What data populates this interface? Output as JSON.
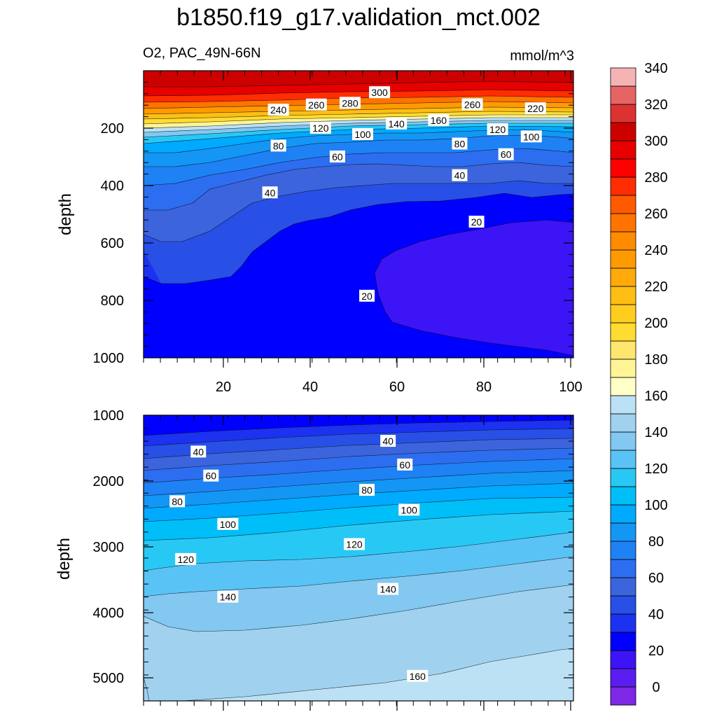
{
  "chart_data": {
    "type": "contour",
    "title": "b1850.f19_g17.validation_mct.002",
    "variable_label": "O2, PAC_49N-66N",
    "units_label": "mmol/m^3",
    "colorbar": {
      "levels": [
        0,
        10,
        20,
        30,
        40,
        50,
        60,
        70,
        80,
        90,
        100,
        110,
        120,
        130,
        140,
        150,
        160,
        170,
        180,
        190,
        200,
        210,
        220,
        230,
        240,
        250,
        260,
        270,
        280,
        290,
        300,
        310,
        320,
        330,
        340,
        350
      ],
      "colors": [
        "#7c28e6",
        "#5a1ef0",
        "#3c14f5",
        "#0000ff",
        "#1c32f0",
        "#2850e6",
        "#3c64dc",
        "#2d6ef0",
        "#1e82f5",
        "#1496f5",
        "#00aaff",
        "#00bef8",
        "#28c8f5",
        "#5ac3f5",
        "#82c8f0",
        "#a0d2f0",
        "#bce1f5",
        "#ffffc8",
        "#fff596",
        "#ffe66e",
        "#ffdc32",
        "#ffcd1e",
        "#ffbe14",
        "#ffaa0a",
        "#ff9b00",
        "#ff8c00",
        "#ff7300",
        "#ff5a00",
        "#ff2d00",
        "#ff0000",
        "#e60000",
        "#cd0000",
        "#dc3232",
        "#e66464",
        "#f5b4b4"
      ],
      "tick_labels": [
        "0",
        "20",
        "40",
        "60",
        "80",
        "100",
        "120",
        "140",
        "160",
        "180",
        "200",
        "220",
        "240",
        "260",
        "280",
        "300",
        "320",
        "340"
      ]
    },
    "panels": [
      {
        "name": "upper",
        "ylabel": "depth",
        "x_range": [
          0,
          102
        ],
        "y_range": [
          0,
          1000
        ],
        "y_ticks": [
          "200",
          "400",
          "600",
          "800",
          "1000"
        ],
        "x_ticks": [
          "20",
          "40",
          "60",
          "80",
          "100"
        ],
        "contour_labels": [
          {
            "text": "300",
            "x": 56,
            "y": 76
          },
          {
            "text": "280",
            "x": 49,
            "y": 113
          },
          {
            "text": "260",
            "x": 41,
            "y": 119
          },
          {
            "text": "260",
            "x": 78,
            "y": 118
          },
          {
            "text": "240",
            "x": 32,
            "y": 137
          },
          {
            "text": "220",
            "x": 93,
            "y": 132
          },
          {
            "text": "160",
            "x": 70,
            "y": 173
          },
          {
            "text": "140",
            "x": 60,
            "y": 185
          },
          {
            "text": "120",
            "x": 42,
            "y": 200
          },
          {
            "text": "120",
            "x": 84,
            "y": 205
          },
          {
            "text": "100",
            "x": 52,
            "y": 222
          },
          {
            "text": "100",
            "x": 92,
            "y": 230
          },
          {
            "text": "80",
            "x": 32,
            "y": 262
          },
          {
            "text": "80",
            "x": 75,
            "y": 255
          },
          {
            "text": "60",
            "x": 46,
            "y": 300
          },
          {
            "text": "60",
            "x": 86,
            "y": 292
          },
          {
            "text": "40",
            "x": 75,
            "y": 365
          },
          {
            "text": "40",
            "x": 30,
            "y": 425
          },
          {
            "text": "20",
            "x": 79,
            "y": 527
          },
          {
            "text": "20",
            "x": 53,
            "y": 785
          }
        ]
      },
      {
        "name": "lower",
        "ylabel": "depth",
        "x_range": [
          0,
          102
        ],
        "y_range": [
          1000,
          5400
        ],
        "y_ticks": [
          "1000",
          "2000",
          "3000",
          "4000",
          "5000"
        ],
        "x_ticks": [],
        "contour_labels": [
          {
            "text": "40",
            "x": 13,
            "y": 1565
          },
          {
            "text": "40",
            "x": 58,
            "y": 1400
          },
          {
            "text": "60",
            "x": 16,
            "y": 1935
          },
          {
            "text": "60",
            "x": 62,
            "y": 1765
          },
          {
            "text": "80",
            "x": 8,
            "y": 2330
          },
          {
            "text": "80",
            "x": 53,
            "y": 2155
          },
          {
            "text": "100",
            "x": 20,
            "y": 2680
          },
          {
            "text": "100",
            "x": 63,
            "y": 2460
          },
          {
            "text": "120",
            "x": 10,
            "y": 3220
          },
          {
            "text": "120",
            "x": 50,
            "y": 2990
          },
          {
            "text": "140",
            "x": 20,
            "y": 3800
          },
          {
            "text": "140",
            "x": 58,
            "y": 3680
          },
          {
            "text": "160",
            "x": 65,
            "y": 5020
          }
        ]
      }
    ]
  }
}
